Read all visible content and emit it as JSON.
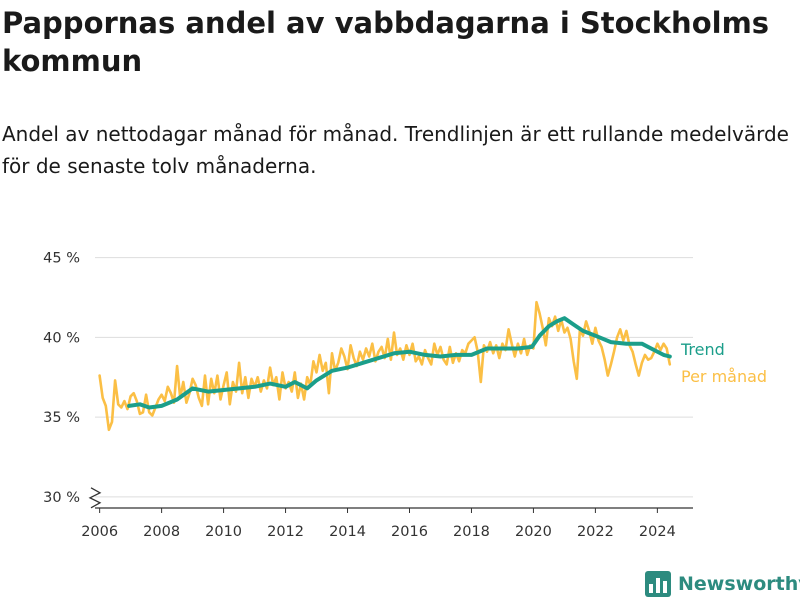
{
  "header": {
    "title": "Pappornas andel av vabbdagarna i Stockholms kommun",
    "subtitle": "Andel av nettodagar månad för månad. Trendlinjen är ett rullande medelvärde för de senaste tolv månaderna."
  },
  "brand": {
    "name": "Newsworthy"
  },
  "colors": {
    "trend": "#1b9e8a",
    "monthly": "#fbbf45",
    "grid": "#dddddd",
    "axis": "#333333"
  },
  "chart_data": {
    "type": "line",
    "y_tick_labels": [
      "30 %",
      "35 %",
      "40 %",
      "45 %"
    ],
    "y_ticks": [
      30,
      35,
      40,
      45
    ],
    "x_tick_labels": [
      "2006",
      "2008",
      "2010",
      "2012",
      "2014",
      "2016",
      "2018",
      "2020",
      "2022",
      "2024"
    ],
    "x_ticks": [
      2006,
      2008,
      2010,
      2012,
      2014,
      2016,
      2018,
      2020,
      2022,
      2024
    ],
    "xlim": [
      2005.85,
      2025.15
    ],
    "ylim": [
      29.3,
      45.6
    ],
    "axis_break": true,
    "grid": true,
    "legend": "direct labels at line ends",
    "series": [
      {
        "name": "Trend",
        "color": "#1b9e8a",
        "points": [
          [
            2006.95,
            35.7
          ],
          [
            2007.3,
            35.8
          ],
          [
            2007.6,
            35.6
          ],
          [
            2008.0,
            35.7
          ],
          [
            2008.5,
            36.1
          ],
          [
            2009.0,
            36.8
          ],
          [
            2009.5,
            36.6
          ],
          [
            2010.0,
            36.7
          ],
          [
            2010.5,
            36.8
          ],
          [
            2011.0,
            36.9
          ],
          [
            2011.5,
            37.1
          ],
          [
            2012.0,
            36.9
          ],
          [
            2012.3,
            37.2
          ],
          [
            2012.7,
            36.8
          ],
          [
            2013.0,
            37.3
          ],
          [
            2013.5,
            37.9
          ],
          [
            2014.0,
            38.1
          ],
          [
            2014.5,
            38.4
          ],
          [
            2015.0,
            38.7
          ],
          [
            2015.5,
            39.0
          ],
          [
            2016.0,
            39.1
          ],
          [
            2016.5,
            38.9
          ],
          [
            2017.0,
            38.8
          ],
          [
            2017.5,
            38.9
          ],
          [
            2018.0,
            38.9
          ],
          [
            2018.5,
            39.3
          ],
          [
            2019.0,
            39.3
          ],
          [
            2019.5,
            39.3
          ],
          [
            2019.95,
            39.4
          ],
          [
            2020.2,
            40.1
          ],
          [
            2020.5,
            40.7
          ],
          [
            2020.75,
            41.0
          ],
          [
            2021.0,
            41.2
          ],
          [
            2021.3,
            40.8
          ],
          [
            2021.6,
            40.4
          ],
          [
            2022.0,
            40.1
          ],
          [
            2022.5,
            39.7
          ],
          [
            2023.0,
            39.6
          ],
          [
            2023.5,
            39.6
          ],
          [
            2023.9,
            39.2
          ],
          [
            2024.2,
            38.9
          ],
          [
            2024.4,
            38.8
          ]
        ]
      },
      {
        "name": "Per månad",
        "color": "#fbbf45",
        "points": [
          [
            2006.0,
            37.6
          ],
          [
            2006.1,
            36.2
          ],
          [
            2006.2,
            35.7
          ],
          [
            2006.3,
            34.2
          ],
          [
            2006.4,
            34.7
          ],
          [
            2006.5,
            37.3
          ],
          [
            2006.6,
            35.8
          ],
          [
            2006.7,
            35.6
          ],
          [
            2006.8,
            36.0
          ],
          [
            2006.9,
            35.5
          ],
          [
            2007.0,
            36.3
          ],
          [
            2007.1,
            36.5
          ],
          [
            2007.2,
            36.0
          ],
          [
            2007.3,
            35.2
          ],
          [
            2007.4,
            35.3
          ],
          [
            2007.5,
            36.4
          ],
          [
            2007.6,
            35.3
          ],
          [
            2007.7,
            35.1
          ],
          [
            2007.8,
            35.6
          ],
          [
            2007.9,
            36.1
          ],
          [
            2008.0,
            36.4
          ],
          [
            2008.1,
            36.0
          ],
          [
            2008.2,
            36.9
          ],
          [
            2008.3,
            36.5
          ],
          [
            2008.4,
            35.9
          ],
          [
            2008.5,
            38.2
          ],
          [
            2008.6,
            36.2
          ],
          [
            2008.7,
            37.2
          ],
          [
            2008.8,
            35.9
          ],
          [
            2008.9,
            36.5
          ],
          [
            2009.0,
            37.4
          ],
          [
            2009.1,
            37.0
          ],
          [
            2009.2,
            36.2
          ],
          [
            2009.3,
            35.7
          ],
          [
            2009.4,
            37.6
          ],
          [
            2009.5,
            35.8
          ],
          [
            2009.6,
            37.4
          ],
          [
            2009.7,
            36.5
          ],
          [
            2009.8,
            37.6
          ],
          [
            2009.9,
            36.1
          ],
          [
            2010.0,
            37.0
          ],
          [
            2010.1,
            37.8
          ],
          [
            2010.2,
            35.8
          ],
          [
            2010.3,
            37.2
          ],
          [
            2010.4,
            36.6
          ],
          [
            2010.5,
            38.4
          ],
          [
            2010.6,
            36.5
          ],
          [
            2010.7,
            37.5
          ],
          [
            2010.8,
            36.2
          ],
          [
            2010.9,
            37.4
          ],
          [
            2011.0,
            36.9
          ],
          [
            2011.1,
            37.5
          ],
          [
            2011.2,
            36.6
          ],
          [
            2011.3,
            37.3
          ],
          [
            2011.4,
            36.8
          ],
          [
            2011.5,
            38.1
          ],
          [
            2011.6,
            37.0
          ],
          [
            2011.7,
            37.5
          ],
          [
            2011.8,
            36.1
          ],
          [
            2011.9,
            37.8
          ],
          [
            2012.0,
            36.8
          ],
          [
            2012.1,
            37.2
          ],
          [
            2012.2,
            36.6
          ],
          [
            2012.3,
            37.8
          ],
          [
            2012.4,
            36.2
          ],
          [
            2012.5,
            37.1
          ],
          [
            2012.6,
            36.1
          ],
          [
            2012.7,
            37.5
          ],
          [
            2012.8,
            37.0
          ],
          [
            2012.9,
            38.5
          ],
          [
            2013.0,
            37.8
          ],
          [
            2013.1,
            38.9
          ],
          [
            2013.2,
            37.9
          ],
          [
            2013.3,
            38.4
          ],
          [
            2013.4,
            36.5
          ],
          [
            2013.5,
            39.0
          ],
          [
            2013.6,
            37.9
          ],
          [
            2013.7,
            38.4
          ],
          [
            2013.8,
            39.3
          ],
          [
            2013.9,
            38.8
          ],
          [
            2014.0,
            38.0
          ],
          [
            2014.1,
            39.5
          ],
          [
            2014.2,
            38.7
          ],
          [
            2014.3,
            38.2
          ],
          [
            2014.4,
            39.1
          ],
          [
            2014.5,
            38.6
          ],
          [
            2014.6,
            39.3
          ],
          [
            2014.7,
            38.8
          ],
          [
            2014.8,
            39.6
          ],
          [
            2014.9,
            38.5
          ],
          [
            2015.0,
            39.1
          ],
          [
            2015.1,
            39.4
          ],
          [
            2015.2,
            38.7
          ],
          [
            2015.3,
            39.9
          ],
          [
            2015.4,
            38.6
          ],
          [
            2015.5,
            40.3
          ],
          [
            2015.6,
            38.9
          ],
          [
            2015.7,
            39.3
          ],
          [
            2015.8,
            38.6
          ],
          [
            2015.9,
            39.5
          ],
          [
            2016.0,
            38.9
          ],
          [
            2016.1,
            39.6
          ],
          [
            2016.2,
            38.5
          ],
          [
            2016.3,
            38.8
          ],
          [
            2016.4,
            38.3
          ],
          [
            2016.5,
            39.2
          ],
          [
            2016.6,
            38.7
          ],
          [
            2016.7,
            38.3
          ],
          [
            2016.8,
            39.6
          ],
          [
            2016.9,
            38.9
          ],
          [
            2017.0,
            39.4
          ],
          [
            2017.1,
            38.6
          ],
          [
            2017.2,
            38.3
          ],
          [
            2017.3,
            39.4
          ],
          [
            2017.4,
            38.4
          ],
          [
            2017.5,
            39.0
          ],
          [
            2017.6,
            38.5
          ],
          [
            2017.7,
            39.2
          ],
          [
            2017.8,
            39.0
          ],
          [
            2017.9,
            39.6
          ],
          [
            2018.0,
            39.8
          ],
          [
            2018.1,
            40.0
          ],
          [
            2018.2,
            39.1
          ],
          [
            2018.3,
            37.2
          ],
          [
            2018.4,
            39.5
          ],
          [
            2018.5,
            39.1
          ],
          [
            2018.6,
            39.7
          ],
          [
            2018.7,
            39.0
          ],
          [
            2018.8,
            39.5
          ],
          [
            2018.9,
            38.7
          ],
          [
            2019.0,
            39.6
          ],
          [
            2019.1,
            39.2
          ],
          [
            2019.2,
            40.5
          ],
          [
            2019.3,
            39.6
          ],
          [
            2019.4,
            38.8
          ],
          [
            2019.5,
            39.6
          ],
          [
            2019.6,
            39.0
          ],
          [
            2019.7,
            39.9
          ],
          [
            2019.8,
            38.9
          ],
          [
            2019.9,
            39.5
          ],
          [
            2020.0,
            39.3
          ],
          [
            2020.1,
            42.2
          ],
          [
            2020.2,
            41.5
          ],
          [
            2020.3,
            40.6
          ],
          [
            2020.4,
            39.5
          ],
          [
            2020.5,
            41.2
          ],
          [
            2020.6,
            40.7
          ],
          [
            2020.7,
            41.3
          ],
          [
            2020.8,
            40.4
          ],
          [
            2020.9,
            41.1
          ],
          [
            2021.0,
            40.3
          ],
          [
            2021.1,
            40.6
          ],
          [
            2021.2,
            39.9
          ],
          [
            2021.3,
            38.5
          ],
          [
            2021.4,
            37.4
          ],
          [
            2021.5,
            40.5
          ],
          [
            2021.6,
            40.1
          ],
          [
            2021.7,
            41.0
          ],
          [
            2021.8,
            40.4
          ],
          [
            2021.9,
            39.6
          ],
          [
            2022.0,
            40.6
          ],
          [
            2022.1,
            39.8
          ],
          [
            2022.2,
            39.4
          ],
          [
            2022.3,
            38.6
          ],
          [
            2022.4,
            37.6
          ],
          [
            2022.5,
            38.3
          ],
          [
            2022.6,
            39.1
          ],
          [
            2022.7,
            40.0
          ],
          [
            2022.8,
            40.5
          ],
          [
            2022.9,
            39.8
          ],
          [
            2023.0,
            40.4
          ],
          [
            2023.1,
            39.5
          ],
          [
            2023.2,
            39.1
          ],
          [
            2023.3,
            38.3
          ],
          [
            2023.4,
            37.6
          ],
          [
            2023.5,
            38.4
          ],
          [
            2023.6,
            38.9
          ],
          [
            2023.7,
            38.6
          ],
          [
            2023.8,
            38.7
          ],
          [
            2023.9,
            39.1
          ],
          [
            2024.0,
            39.6
          ],
          [
            2024.1,
            39.2
          ],
          [
            2024.2,
            39.6
          ],
          [
            2024.3,
            39.3
          ],
          [
            2024.4,
            38.3
          ]
        ]
      }
    ]
  }
}
